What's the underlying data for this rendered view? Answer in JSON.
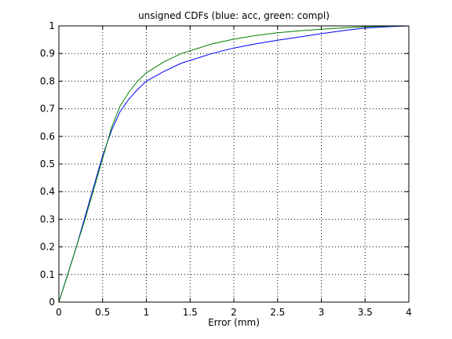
{
  "chart_data": {
    "type": "line",
    "title": "unsigned CDFs (blue: acc, green: compl)",
    "xlabel": "Error (mm)",
    "ylabel": "",
    "xlim": [
      0,
      4
    ],
    "ylim": [
      0,
      1
    ],
    "grid": true,
    "grid_style": "dotted",
    "xticks": [
      "0",
      "0.5",
      "1",
      "1.5",
      "2",
      "2.5",
      "3",
      "3.5",
      "4"
    ],
    "yticks": [
      "0",
      "0.1",
      "0.2",
      "0.3",
      "0.4",
      "0.5",
      "0.6",
      "0.7",
      "0.8",
      "0.9",
      "1"
    ],
    "series": [
      {
        "color": "#0000ff",
        "x": [
          0,
          0.05,
          0.1,
          0.2,
          0.3,
          0.4,
          0.5,
          0.6,
          0.7,
          0.8,
          0.9,
          1.0,
          1.2,
          1.4,
          1.5,
          1.75,
          2.0,
          2.25,
          2.5,
          2.75,
          3.0,
          3.25,
          3.5,
          3.75,
          4.0
        ],
        "y": [
          0.0,
          0.05,
          0.1,
          0.2,
          0.31,
          0.42,
          0.53,
          0.62,
          0.69,
          0.735,
          0.77,
          0.8,
          0.835,
          0.865,
          0.875,
          0.9,
          0.92,
          0.935,
          0.948,
          0.96,
          0.972,
          0.983,
          0.992,
          0.997,
          1.0
        ]
      },
      {
        "color": "#008000",
        "x": [
          0,
          0.05,
          0.1,
          0.2,
          0.3,
          0.4,
          0.5,
          0.6,
          0.7,
          0.8,
          0.9,
          1.0,
          1.2,
          1.4,
          1.5,
          1.75,
          2.0,
          2.25,
          2.5,
          2.75,
          3.0,
          3.25,
          3.5,
          3.75,
          4.0
        ],
        "y": [
          0.0,
          0.05,
          0.1,
          0.2,
          0.3,
          0.41,
          0.52,
          0.63,
          0.71,
          0.76,
          0.8,
          0.83,
          0.87,
          0.9,
          0.91,
          0.935,
          0.952,
          0.965,
          0.975,
          0.982,
          0.988,
          0.993,
          0.997,
          0.999,
          1.0
        ]
      }
    ]
  }
}
